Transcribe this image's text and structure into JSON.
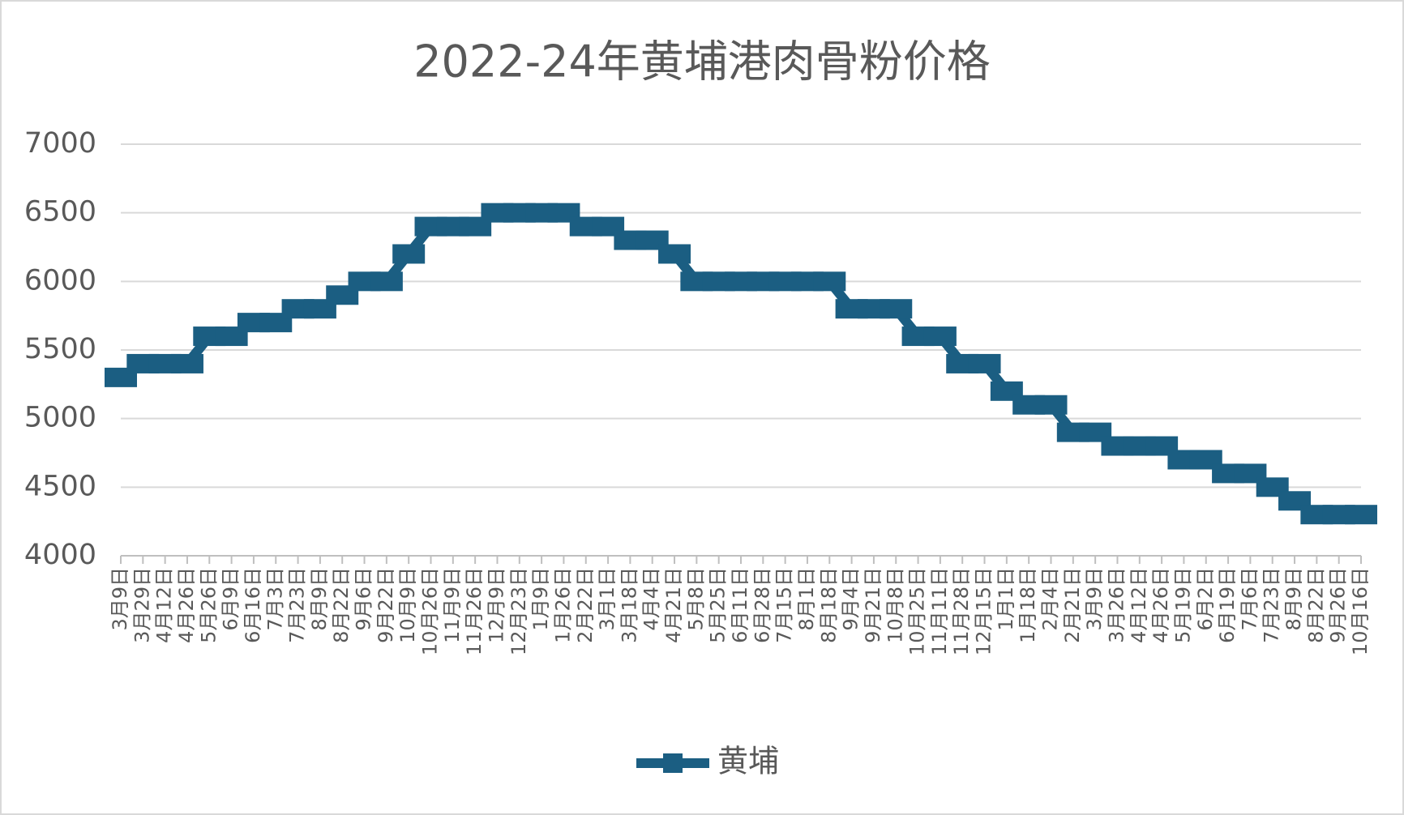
{
  "chart_data": {
    "type": "line",
    "title": "2022-24年黄埔港肉骨粉价格",
    "categories": [
      "3月9日",
      "3月29日",
      "4月12日",
      "4月26日",
      "5月26日",
      "6月9日",
      "6月16日",
      "7月3日",
      "7月23日",
      "8月9日",
      "8月22日",
      "9月6日",
      "9月22日",
      "10月9日",
      "10月26日",
      "11月9日",
      "11月26日",
      "12月9日",
      "12月23日",
      "1月9日",
      "1月26日",
      "2月22日",
      "3月1日",
      "3月18日",
      "4月4日",
      "4月21日",
      "5月8日",
      "5月25日",
      "6月11日",
      "6月28日",
      "7月15日",
      "8月1日",
      "8月18日",
      "9月4日",
      "9月21日",
      "10月8日",
      "10月25日",
      "11月11日",
      "11月28日",
      "12月15日",
      "1月1日",
      "1月18日",
      "2月4日",
      "2月21日",
      "3月9日",
      "3月26日",
      "4月12日",
      "4月26日",
      "5月19日",
      "6月2日",
      "6月19日",
      "7月6日",
      "7月23日",
      "8月9日",
      "8月22日",
      "9月26日",
      "10月16日"
    ],
    "series": [
      {
        "name": "黄埔",
        "color": "#1b5e82",
        "values": [
          5300,
          5400,
          5400,
          5400,
          5600,
          5600,
          5700,
          5700,
          5800,
          5800,
          5900,
          6000,
          6000,
          6200,
          6400,
          6400,
          6400,
          6500,
          6500,
          6500,
          6500,
          6400,
          6400,
          6300,
          6300,
          6200,
          6000,
          6000,
          6000,
          6000,
          6000,
          6000,
          6000,
          5800,
          5800,
          5800,
          5600,
          5600,
          5400,
          5400,
          5200,
          5100,
          5100,
          4900,
          4900,
          4800,
          4800,
          4800,
          4700,
          4700,
          4600,
          4600,
          4500,
          4400,
          4300,
          4300,
          4300
        ]
      }
    ],
    "ylim": [
      4000,
      7000
    ],
    "yticks": [
      4000,
      4500,
      5000,
      5500,
      6000,
      6500,
      7000
    ],
    "grid": true,
    "legend": "bottom"
  }
}
